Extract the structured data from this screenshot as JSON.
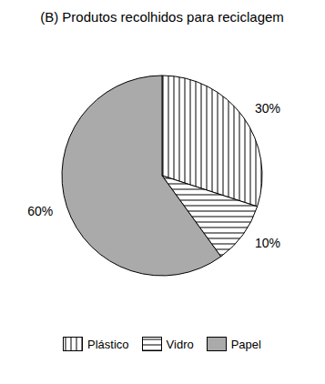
{
  "chart_data": {
    "type": "pie",
    "title": "(B) Produtos recolhidos para reciclagem",
    "categories": [
      "Plástico",
      "Vidro",
      "Papel"
    ],
    "values": [
      30,
      10,
      60
    ],
    "value_labels": [
      "30%",
      "10%",
      "60%"
    ],
    "colors": [
      "#ffffff",
      "#ffffff",
      "#aaaaaa"
    ],
    "data_labels": true,
    "legend": "bottom"
  }
}
